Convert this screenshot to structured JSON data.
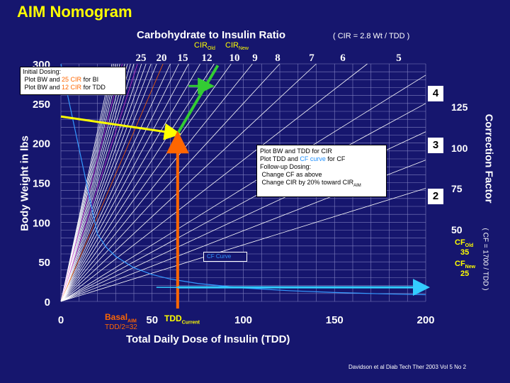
{
  "slide": {
    "title": "AIM Nomogram",
    "citation": "Davidson et al Diab Tech Ther 2003 Vol 5 No 2"
  },
  "top_axis": {
    "title": "Carbohydrate to Insulin Ratio",
    "formula": "( CIR = 2.8 Wt / TDD )",
    "cir_old_label": "CIR",
    "cir_old_sub": "Old",
    "cir_new_label": "CIR",
    "cir_new_sub": "New",
    "ticks": [
      "25",
      "20",
      "15",
      "12",
      "10",
      "9",
      "8",
      "7",
      "6",
      "5"
    ]
  },
  "right_axis": {
    "title": "Correction Factor",
    "formula": "( CF = 1700 / TDD )",
    "ticks": [
      "125",
      "100",
      "75",
      "50"
    ],
    "cf_old_label": "CF",
    "cf_old_sub": "Old",
    "cf_old_value": "35",
    "cf_new_label": "CF",
    "cf_new_sub": "New",
    "cf_new_value": "25"
  },
  "steps": [
    "2",
    "3",
    "4"
  ],
  "initial_box": {
    "line1": "Initial Dosing:",
    "line2_pre": "Plot BW and ",
    "line2_hl": "25 CIR",
    "line2_post": " for BI",
    "line3_pre": "Plot BW and ",
    "line3_hl": "12 CIR",
    "line3_post": " for TDD"
  },
  "followup_box": {
    "line1": "Plot BW and TDD for CIR",
    "line2_pre": "Plot TDD and ",
    "line2_hl": "CF curve",
    "line2_post": " for CF",
    "line3": "Follow-up Dosing:",
    "line4": "Change CF as above",
    "line5_pre": "Change CIR by 20% toward CIR",
    "line5_sub": "AIM"
  },
  "annotations": {
    "cf_curve": "CF Curve",
    "basal_label": "Basal",
    "basal_sub": "AIM",
    "basal_formula": "TDD/2=32",
    "tdd_label": "TDD",
    "tdd_sub": "Current"
  },
  "colors": {
    "background": "#16166e",
    "title": "#ffff00",
    "grid": "#8080c0",
    "fan": "#ffffff",
    "cf_curve": "#3399ff",
    "yellow_marker": "#ffff00",
    "green_marker": "#33cc33",
    "orange_marker": "#ff6600",
    "cyan_marker": "#33ccff"
  },
  "chart_data": {
    "type": "line",
    "title": "",
    "xlabel": "Total Daily Dose of Insulin (TDD)",
    "ylabel": "Body Weight in lbs",
    "xlim": [
      0,
      200
    ],
    "ylim": [
      0,
      300
    ],
    "grid": true,
    "x_ticks": [
      "0",
      "50",
      "100",
      "150",
      "200"
    ],
    "y_ticks": [
      "0",
      "50",
      "100",
      "150",
      "200",
      "250",
      "300"
    ],
    "cir_lines": [
      25,
      20,
      15,
      12,
      10,
      9,
      8,
      7,
      6,
      5
    ],
    "cf_curve_points": [
      [
        20,
        85
      ],
      [
        25,
        68
      ],
      [
        30,
        57
      ],
      [
        40,
        42.5
      ],
      [
        50,
        34
      ],
      [
        60,
        28.3
      ],
      [
        75,
        22.7
      ],
      [
        100,
        17
      ],
      [
        125,
        13.6
      ],
      [
        150,
        11.3
      ],
      [
        175,
        9.7
      ],
      [
        200,
        8.5
      ]
    ],
    "markers": {
      "body_weight": 212,
      "tdd_current": 64,
      "cf_old": 35,
      "cf_new": 25
    }
  }
}
